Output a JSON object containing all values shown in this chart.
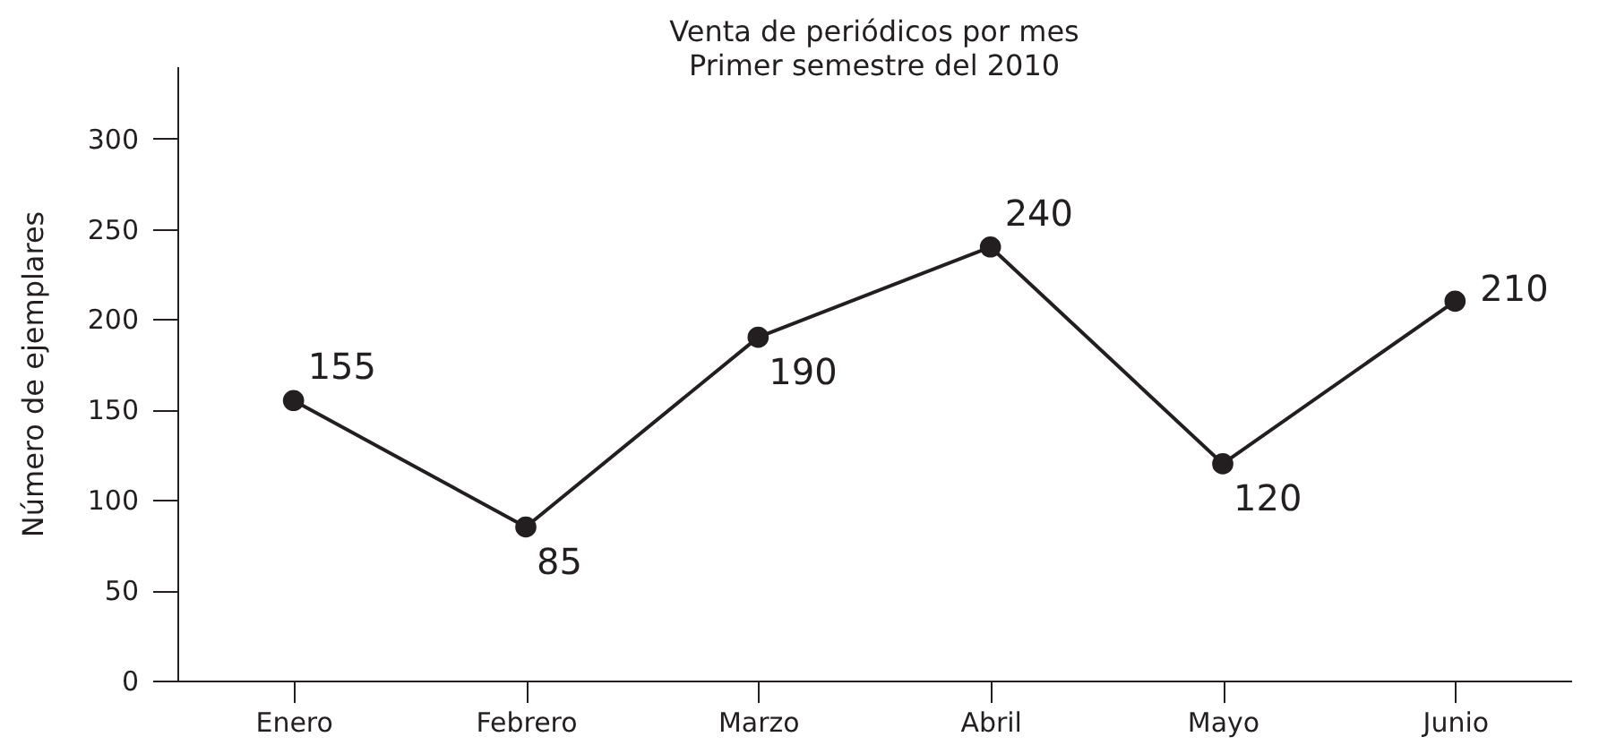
{
  "chart_data": {
    "type": "line",
    "title": "Venta de periódicos por mes",
    "subtitle": "Primer semestre del 2010",
    "ylabel": "Número de ejemplares",
    "categories": [
      "Enero",
      "Febrero",
      "Marzo",
      "Abril",
      "Mayo",
      "Junio"
    ],
    "series": [
      {
        "color": "#231f20",
        "values": [
          155,
          85,
          190,
          240,
          120,
          210
        ]
      }
    ],
    "ylim": [
      0,
      340
    ],
    "yticks": [
      0,
      50,
      100,
      150,
      200,
      250,
      300
    ],
    "grid": false,
    "marker": "circle",
    "line_style": "solid",
    "data_labels": true
  }
}
